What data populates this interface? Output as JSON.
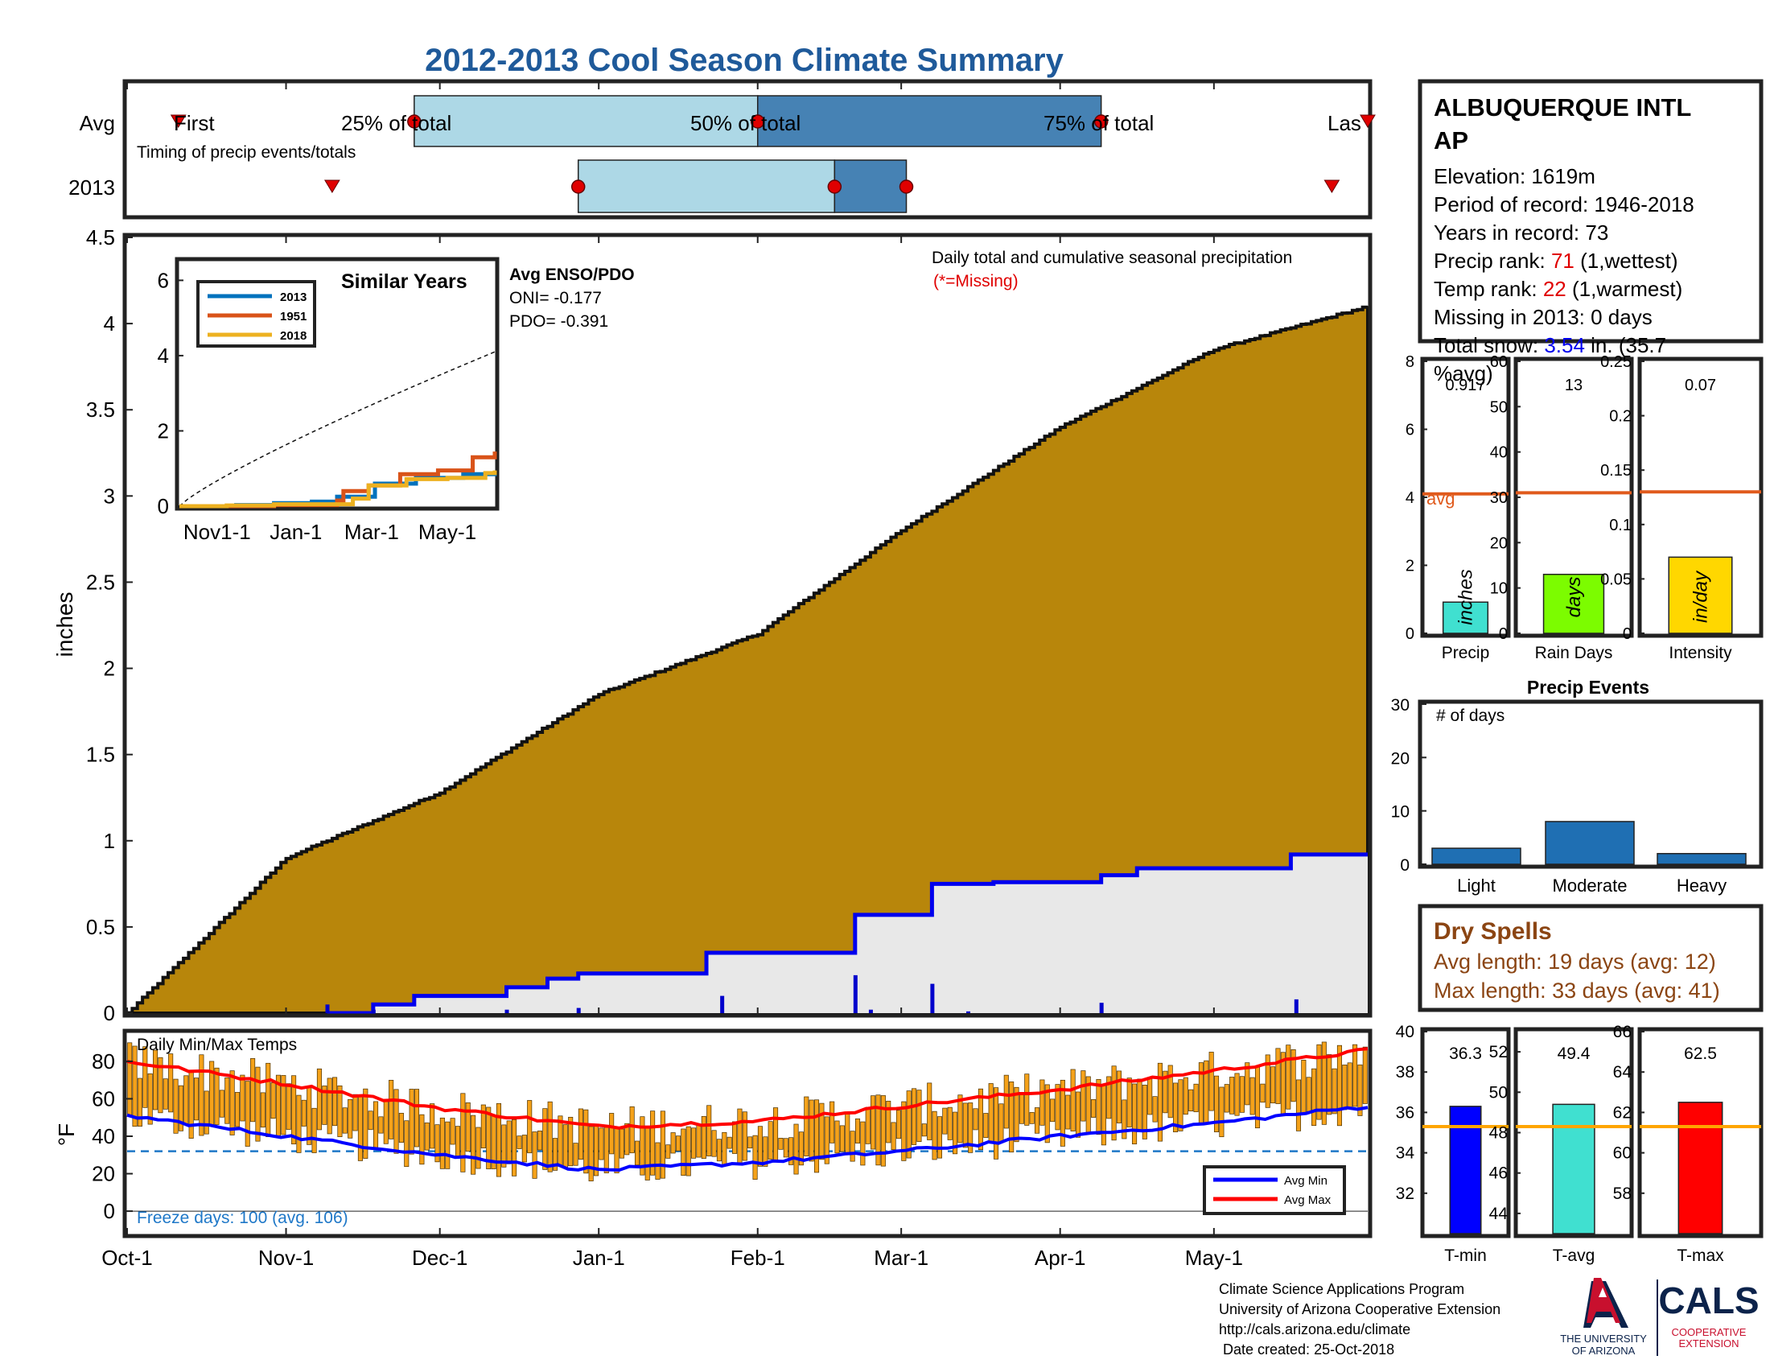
{
  "title": "2012-2013 Cool Season Climate Summary",
  "colors": {
    "title": "#1f5a9a",
    "avg_cum_fill": "#b8860b",
    "missing_fill": "#e8e8e8",
    "year_line": "#0000ee",
    "timing_light": "#add8e6",
    "timing_dark": "#4682b4",
    "marker_red": "#e00000",
    "avg_line": "#e05a1c",
    "bar_precip": "#40e0d0",
    "bar_raindays": "#7cfc00",
    "bar_intensity": "#ffd700",
    "events_bar": "#1f6fb3",
    "temp_bar": "#f5a21a",
    "avg_min_line": "#0000ff",
    "avg_max_line": "#ff0000",
    "freeze_line": "#1f78c8",
    "tmin_bar": "#0000ff",
    "tavg_bar": "#40e0d0",
    "tmax_bar": "#ff0000",
    "temp_avg_line": "#ffa500",
    "dry_spell_text": "#8b4513",
    "rank_value": "#e00000",
    "snow_value": "#0000ee",
    "logo_red": "#c8102e",
    "logo_navy": "#0c234b"
  },
  "timing": {
    "row_labels": [
      "Avg",
      "2013"
    ],
    "note": "Timing of precip events/totals",
    "labels": [
      "First",
      "25% of total",
      "50% of total",
      "75% of total",
      "Las"
    ],
    "avg_days": {
      "first": 10,
      "p25": 56,
      "p50": 123,
      "p75": 190,
      "last": 242
    },
    "year_days": {
      "first": 40,
      "p25": 88,
      "p50": 138,
      "p75": 152,
      "last": 235
    }
  },
  "station": {
    "name": "ALBUQUERQUE INTL AP",
    "elevation": "Elevation: 1619m",
    "period": "Period of record: 1946-2018",
    "years": "Years in record: 73",
    "precip_rank_label": "Precip rank:",
    "precip_rank_value": "71",
    "precip_rank_note": "(1,wettest)",
    "temp_rank_label": "Temp rank:",
    "temp_rank_value": "22",
    "temp_rank_note": "(1,warmest)",
    "missing": "Missing in 2013: 0 days",
    "snow_label": "Total snow:",
    "snow_value": "3.54",
    "snow_unit": "in. (35.7",
    "snow_pct": "%avg)"
  },
  "main_chart": {
    "ylabel": "inches",
    "yticks": [
      "0",
      "0.5",
      "1",
      "1.5",
      "2",
      "2.5",
      "3",
      "3.5",
      "4",
      "4.5"
    ],
    "ylim": [
      0,
      4.5
    ],
    "xticks": [
      "Oct-1",
      "Nov-1",
      "Dec-1",
      "Jan-1",
      "Feb-1",
      "Mar-1",
      "Apr-1",
      "May-1"
    ],
    "xtick_days": [
      0,
      31,
      61,
      92,
      123,
      151,
      182,
      212
    ],
    "xlim_days": [
      0,
      242
    ],
    "note_title": "Daily total and cumulative seasonal precipitation",
    "note_missing": "(*=Missing)",
    "enso_title": "Avg ENSO/PDO",
    "oni": "ONI= -0.177",
    "pdo": "PDO= -0.391"
  },
  "similar_years": {
    "title": "Similar Years",
    "yticks": [
      "0",
      "2",
      "4",
      "6"
    ],
    "xticks": [
      "Nov1-1",
      "Jan-1",
      "Mar-1",
      "May-1"
    ],
    "legend": [
      "2013",
      "1951",
      "2018"
    ],
    "colors": [
      "#0072bd",
      "#d95319",
      "#edb120"
    ]
  },
  "mini_bars": {
    "precip": {
      "label": "Precip",
      "unit": "inches",
      "value_text": "0.917",
      "value": 0.917,
      "avg": 4.1,
      "avg_label": "avg",
      "ylim": [
        0,
        8
      ],
      "yticks": [
        "0",
        "2",
        "4",
        "6",
        "8"
      ]
    },
    "raindays": {
      "label": "Rain Days",
      "unit": "days",
      "value_text": "13",
      "value": 13,
      "avg": 31,
      "ylim": [
        0,
        60
      ],
      "yticks": [
        "0",
        "10",
        "20",
        "30",
        "40",
        "50",
        "60"
      ]
    },
    "intensity": {
      "label": "Intensity",
      "unit": "in/day",
      "value_text": "0.07",
      "value": 0.07,
      "avg": 0.13,
      "ylim": [
        0,
        0.25
      ],
      "yticks": [
        "0",
        "0.05",
        "0.1",
        "0.15",
        "0.2",
        "0.25"
      ]
    }
  },
  "precip_events": {
    "title": "Precip Events",
    "note": "# of days",
    "categories": [
      "Light",
      "Moderate",
      "Heavy"
    ],
    "values": [
      3,
      8,
      2
    ],
    "ylim": [
      0,
      30
    ],
    "yticks": [
      "0",
      "10",
      "20",
      "30"
    ]
  },
  "dry_spells": {
    "title": "Dry Spells",
    "avg_length": "Avg length: 19 days (avg: 12)",
    "max_length": "Max length: 33 days (avg: 41)"
  },
  "temps": {
    "title": "Daily Min/Max Temps",
    "ylabel": "°F",
    "yticks": [
      "0",
      "20",
      "40",
      "60",
      "80"
    ],
    "ylim": [
      -12,
      95
    ],
    "freeze_text": "Freeze days: 100 (avg. 106)",
    "legend_min": "Avg Min",
    "legend_max": "Avg Max"
  },
  "temp_bars": {
    "tmin": {
      "label": "T-min",
      "value_text": "36.3",
      "value": 36.3,
      "avg": 35.3,
      "ylim": [
        30,
        40
      ],
      "yticks": [
        "32",
        "34",
        "36",
        "38",
        "40"
      ]
    },
    "tavg": {
      "label": "T-avg",
      "value_text": "49.4",
      "value": 49.4,
      "avg": 48.3,
      "ylim": [
        43,
        53
      ],
      "yticks": [
        "44",
        "46",
        "48",
        "50",
        "52"
      ]
    },
    "tmax": {
      "label": "T-max",
      "value_text": "62.5",
      "value": 62.5,
      "avg": 61.3,
      "ylim": [
        56,
        66
      ],
      "yticks": [
        "58",
        "60",
        "62",
        "64",
        "66"
      ]
    }
  },
  "footer": {
    "line1": "Climate Science Applications Program",
    "line2": "University of Arizona Cooperative Extension",
    "line3": "http://cals.arizona.edu/climate",
    "line4": " Date created: 25-Oct-2018"
  },
  "logos": {
    "ua_line1": "THE UNIVERSITY",
    "ua_line2": "OF ARIZONA",
    "cals": "CALS",
    "coop1": "COOPERATIVE",
    "coop2": "EXTENSION"
  },
  "chart_data": [
    {
      "type": "area",
      "title": "Daily total and cumulative seasonal precipitation",
      "ylabel": "inches",
      "ylim": [
        0,
        4.5
      ],
      "x_dates": [
        "Oct-1",
        "Nov-1",
        "Dec-1",
        "Jan-1",
        "Feb-1",
        "Mar-1",
        "Apr-1",
        "May-1",
        "May-30"
      ],
      "series": [
        {
          "name": "Avg",
          "values": [
            0,
            0.9,
            1.28,
            1.85,
            2.2,
            2.8,
            3.4,
            3.85,
            4.1
          ]
        },
        {
          "name": "2013",
          "values": [
            0,
            0,
            0.1,
            0.25,
            0.35,
            0.75,
            0.85,
            0.85,
            0.92
          ]
        }
      ]
    },
    {
      "type": "bar",
      "title": "Precip Events",
      "categories": [
        "Light",
        "Moderate",
        "Heavy"
      ],
      "values": [
        3,
        8,
        2
      ],
      "ylim": [
        0,
        30
      ]
    },
    {
      "type": "bar",
      "categories": [
        "Precip",
        "Rain Days",
        "Intensity"
      ],
      "values": [
        0.917,
        13,
        0.07
      ],
      "avg": [
        4.1,
        31,
        0.13
      ]
    },
    {
      "type": "bar",
      "categories": [
        "T-min",
        "T-avg",
        "T-max"
      ],
      "values": [
        36.3,
        49.4,
        62.5
      ],
      "avg": [
        35.3,
        48.3,
        61.3
      ]
    },
    {
      "type": "line",
      "title": "Daily Min/Max Temps",
      "ylabel": "°F",
      "x_dates": [
        "Oct-1",
        "Nov-1",
        "Dec-1",
        "Jan-1",
        "Feb-1",
        "Mar-1",
        "Apr-1",
        "May-1",
        "May-30"
      ],
      "series": [
        {
          "name": "Avg Max",
          "values": [
            80,
            68,
            55,
            45,
            48,
            56,
            65,
            75,
            86
          ]
        },
        {
          "name": "Avg Min",
          "values": [
            51,
            40,
            30,
            22,
            26,
            32,
            40,
            47,
            56
          ]
        }
      ]
    }
  ]
}
